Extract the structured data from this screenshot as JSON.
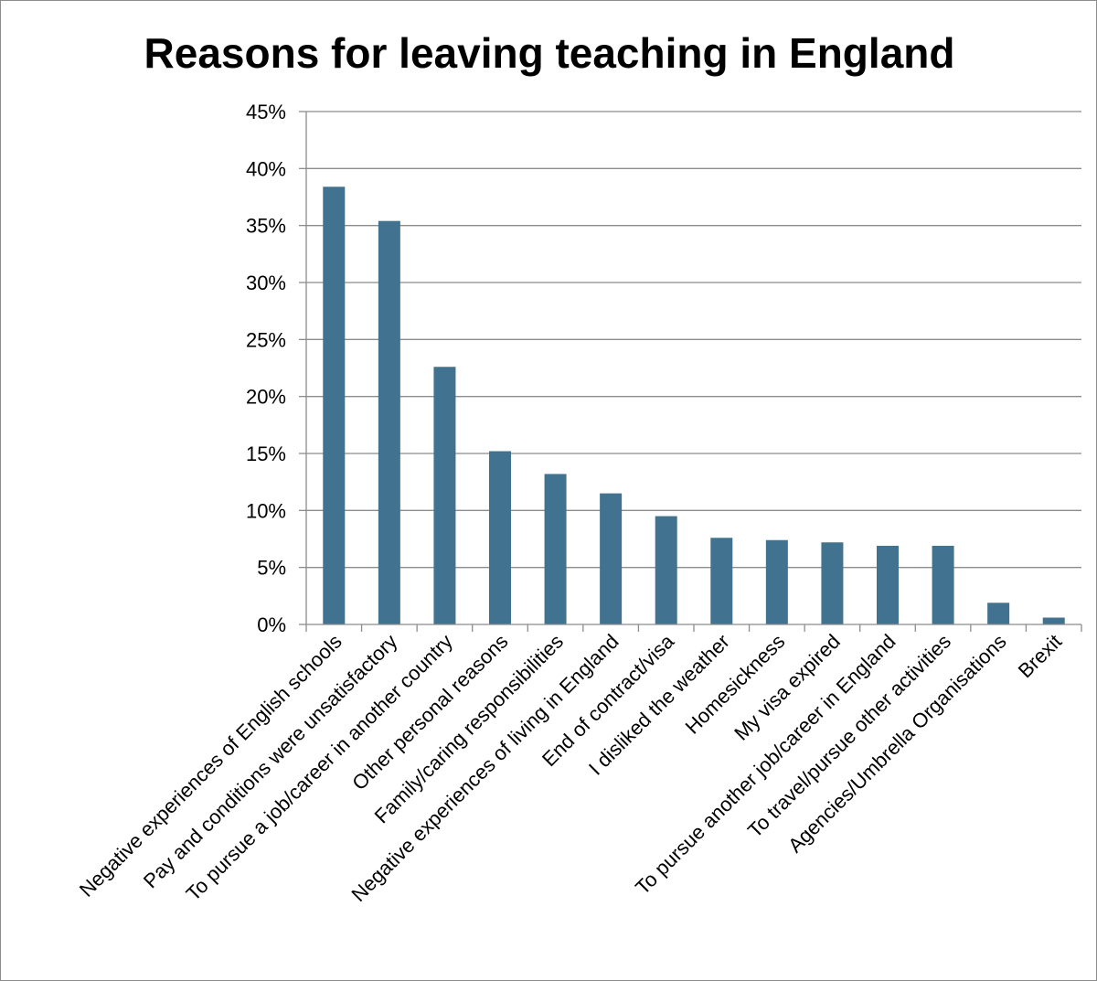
{
  "chart_data": {
    "type": "bar",
    "title": "Reasons for leaving teaching in England",
    "xlabel": "",
    "ylabel": "",
    "ylim": [
      0,
      45
    ],
    "y_ticks": [
      "0%",
      "5%",
      "10%",
      "15%",
      "20%",
      "25%",
      "30%",
      "35%",
      "40%",
      "45%"
    ],
    "y_tick_values": [
      0,
      5,
      10,
      15,
      20,
      25,
      30,
      35,
      40,
      45
    ],
    "value_unit": "%",
    "grid": true,
    "legend": "none",
    "bar_color": "#41728f",
    "categories": [
      "Negative experiences of English schools",
      "Pay and conditions were unsatisfactory",
      "To pursue a job/career in another country",
      "Other personal reasons",
      "Family/caring responsibilities",
      "Negative experiences of living in England",
      "End of contract/visa",
      "I disliked the weather",
      "Homesickness",
      "My visa expired",
      "To pursue another job/career in England",
      "To travel/pursue other activities",
      "Agencies/Umbrella Organisations",
      "Brexit"
    ],
    "values": [
      38.4,
      35.4,
      22.6,
      15.2,
      13.2,
      11.5,
      9.5,
      7.6,
      7.4,
      7.2,
      6.9,
      6.9,
      1.9,
      0.6
    ]
  }
}
